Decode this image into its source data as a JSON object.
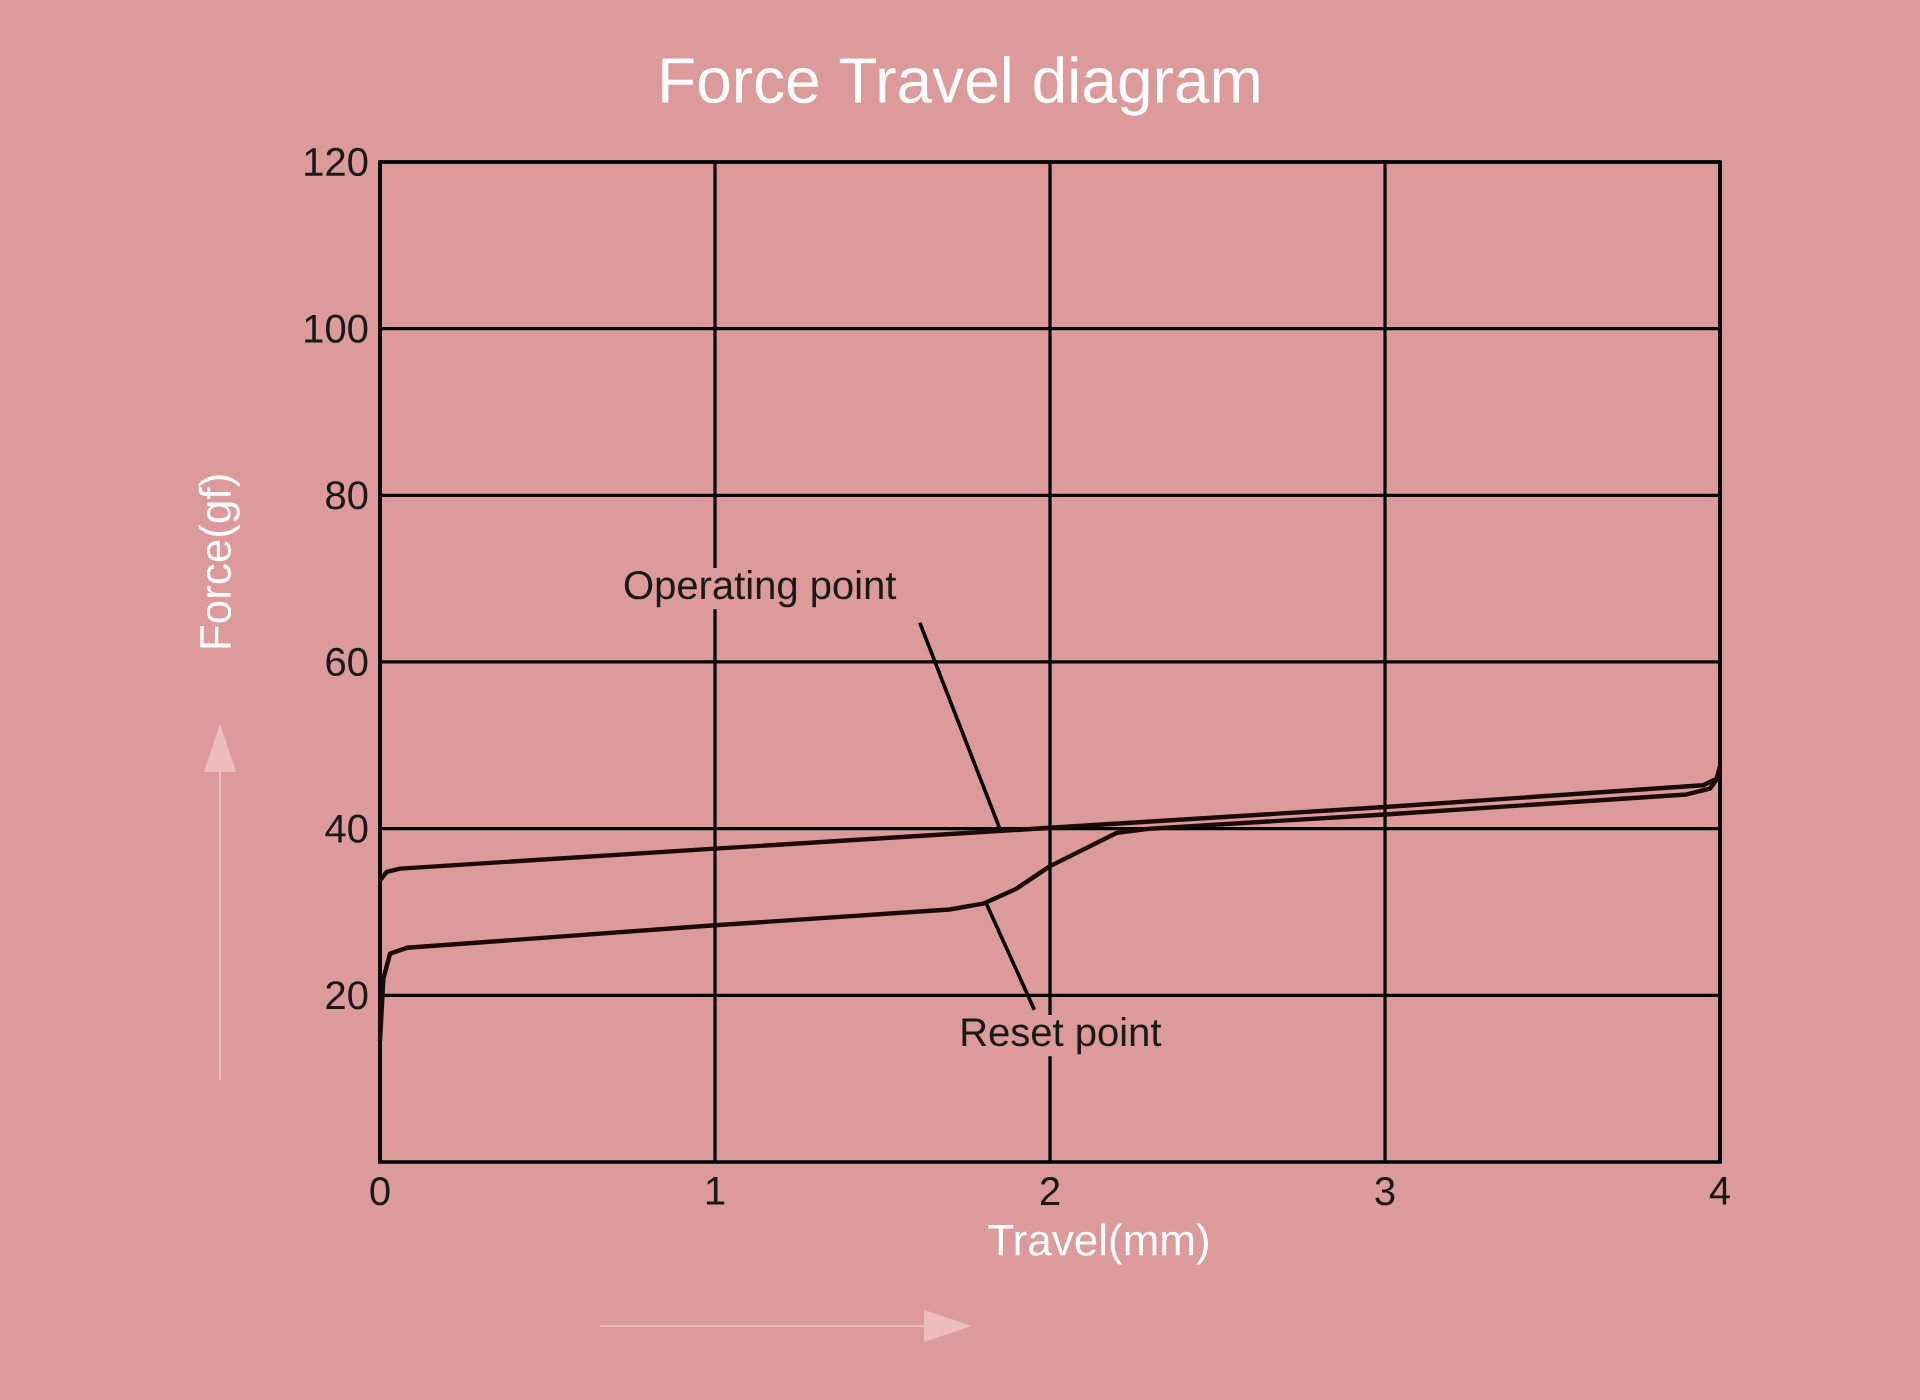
{
  "chart_data": {
    "type": "line",
    "title": "Force Travel diagram",
    "xlabel": "Travel(mm)",
    "ylabel": "Force(gf)",
    "xlim": [
      0,
      4
    ],
    "ylim": [
      0,
      120
    ],
    "xticks": [
      0,
      1,
      2,
      3,
      4
    ],
    "yticks": [
      20,
      40,
      60,
      80,
      100,
      120
    ],
    "grid": true,
    "series": [
      {
        "color": "#1a0a0a",
        "x": [
          0,
          0.02,
          0.06,
          1,
          2,
          3,
          3.95,
          3.99,
          4
        ],
        "values": [
          33.8,
          34.8,
          35.2,
          37.6,
          40.1,
          42.6,
          45.2,
          46,
          47.5
        ]
      },
      {
        "color": "#1a0a0a",
        "x": [
          0,
          0.01,
          0.03,
          0.08,
          1,
          1.7,
          1.8,
          1.9,
          2,
          2.2,
          2.3,
          3,
          3.9,
          3.97,
          4
        ],
        "values": [
          14.5,
          22,
          25,
          25.7,
          28.4,
          30.3,
          31,
          32.8,
          35.5,
          39.5,
          40,
          41.7,
          44.1,
          44.8,
          46.5
        ]
      }
    ],
    "annotations": [
      {
        "text": "Operating point",
        "x": 1.85,
        "y": 40
      },
      {
        "text": "Reset point",
        "x": 1.81,
        "y": 31
      }
    ]
  }
}
